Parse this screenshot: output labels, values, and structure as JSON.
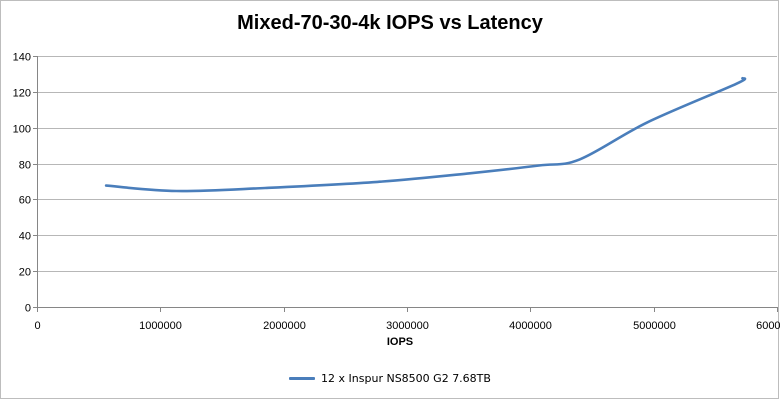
{
  "chart_data": {
    "type": "line",
    "title": "Mixed-70-30-4k IOPS vs Latency",
    "xlabel": "IOPS",
    "ylabel": "",
    "xlim": [
      0,
      6000000
    ],
    "ylim": [
      0,
      140
    ],
    "x_ticks": [
      0,
      1000000,
      2000000,
      3000000,
      4000000,
      5000000,
      6000000
    ],
    "x_tick_labels": [
      "0",
      "1000000",
      "2000000",
      "3000000",
      "4000000",
      "5000000",
      "6000000"
    ],
    "y_ticks": [
      0,
      20,
      40,
      60,
      80,
      100,
      120,
      140
    ],
    "y_tick_labels": [
      "0",
      "20",
      "40",
      "60",
      "80",
      "100",
      "120",
      "140"
    ],
    "grid": "horizontal",
    "legend_position": "bottom",
    "series": [
      {
        "name": "12 x Inspur NS8500 G2 7.68TB",
        "color": "#4a7ebb",
        "x": [
          560000,
          1130000,
          1850000,
          2760000,
          3510000,
          4070000,
          4400000,
          4950000,
          5670000,
          5720000
        ],
        "y": [
          67.7,
          64.7,
          66.4,
          69.8,
          74.6,
          78.9,
          82.3,
          103.0,
          124.5,
          127.6
        ]
      }
    ]
  }
}
